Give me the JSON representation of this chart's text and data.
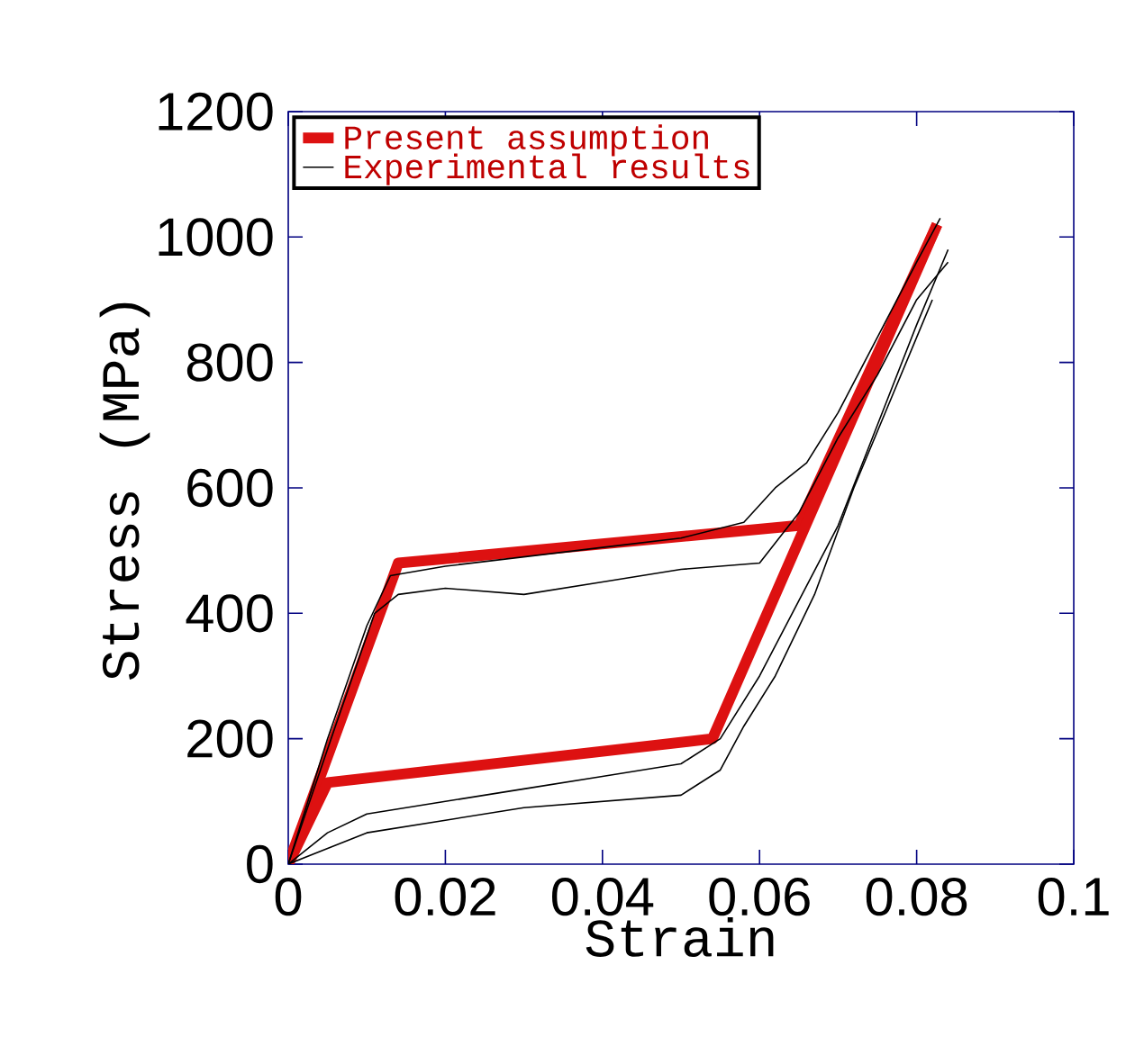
{
  "chart_data": {
    "type": "line",
    "xlabel": "Strain",
    "ylabel": "Stress (MPa)",
    "xlim": [
      0,
      0.1
    ],
    "ylim": [
      0,
      1200
    ],
    "xticks": [
      0,
      0.02,
      0.04,
      0.06,
      0.08,
      0.1
    ],
    "yticks": [
      0,
      200,
      400,
      600,
      800,
      1000,
      1200
    ],
    "legend": "top left",
    "grid": false,
    "marker": "none",
    "line_style": "solid",
    "series": [
      {
        "name": "Present assumption",
        "color": "#dd1111",
        "x": [
          0,
          0.014,
          0.065,
          0.0826
        ],
        "values": [
          0,
          480,
          540,
          1020
        ]
      },
      {
        "color": "#dd1111",
        "x": [
          0,
          0.005,
          0.054,
          0.0826
        ],
        "values": [
          0,
          130,
          200,
          1020
        ]
      },
      {
        "name": "Experimental results",
        "color": "#000000",
        "x": [
          0,
          0.005,
          0.01,
          0.013,
          0.02,
          0.03,
          0.04,
          0.05,
          0.058,
          0.062,
          0.066,
          0.07,
          0.075,
          0.08,
          0.083
        ],
        "values": [
          0,
          200,
          380,
          460,
          475,
          490,
          505,
          520,
          545,
          600,
          640,
          720,
          840,
          960,
          1030
        ]
      },
      {
        "color": "#000000",
        "x": [
          0,
          0.005,
          0.01,
          0.02,
          0.03,
          0.04,
          0.05,
          0.055,
          0.06,
          0.065,
          0.07,
          0.075,
          0.08,
          0.084
        ],
        "values": [
          0,
          50,
          80,
          100,
          120,
          140,
          160,
          200,
          300,
          420,
          540,
          700,
          860,
          980
        ]
      },
      {
        "color": "#000000",
        "x": [
          0,
          0.006,
          0.011,
          0.014,
          0.02,
          0.03,
          0.04,
          0.05,
          0.06,
          0.065,
          0.07,
          0.075,
          0.08,
          0.084
        ],
        "values": [
          0,
          220,
          400,
          430,
          440,
          430,
          450,
          470,
          480,
          560,
          680,
          780,
          900,
          960
        ]
      },
      {
        "color": "#000000",
        "x": [
          0,
          0.004,
          0.01,
          0.02,
          0.03,
          0.04,
          0.05,
          0.055,
          0.058,
          0.062,
          0.067,
          0.072,
          0.077,
          0.082
        ],
        "values": [
          0,
          20,
          50,
          70,
          90,
          100,
          110,
          150,
          220,
          300,
          430,
          600,
          750,
          900
        ]
      }
    ]
  }
}
